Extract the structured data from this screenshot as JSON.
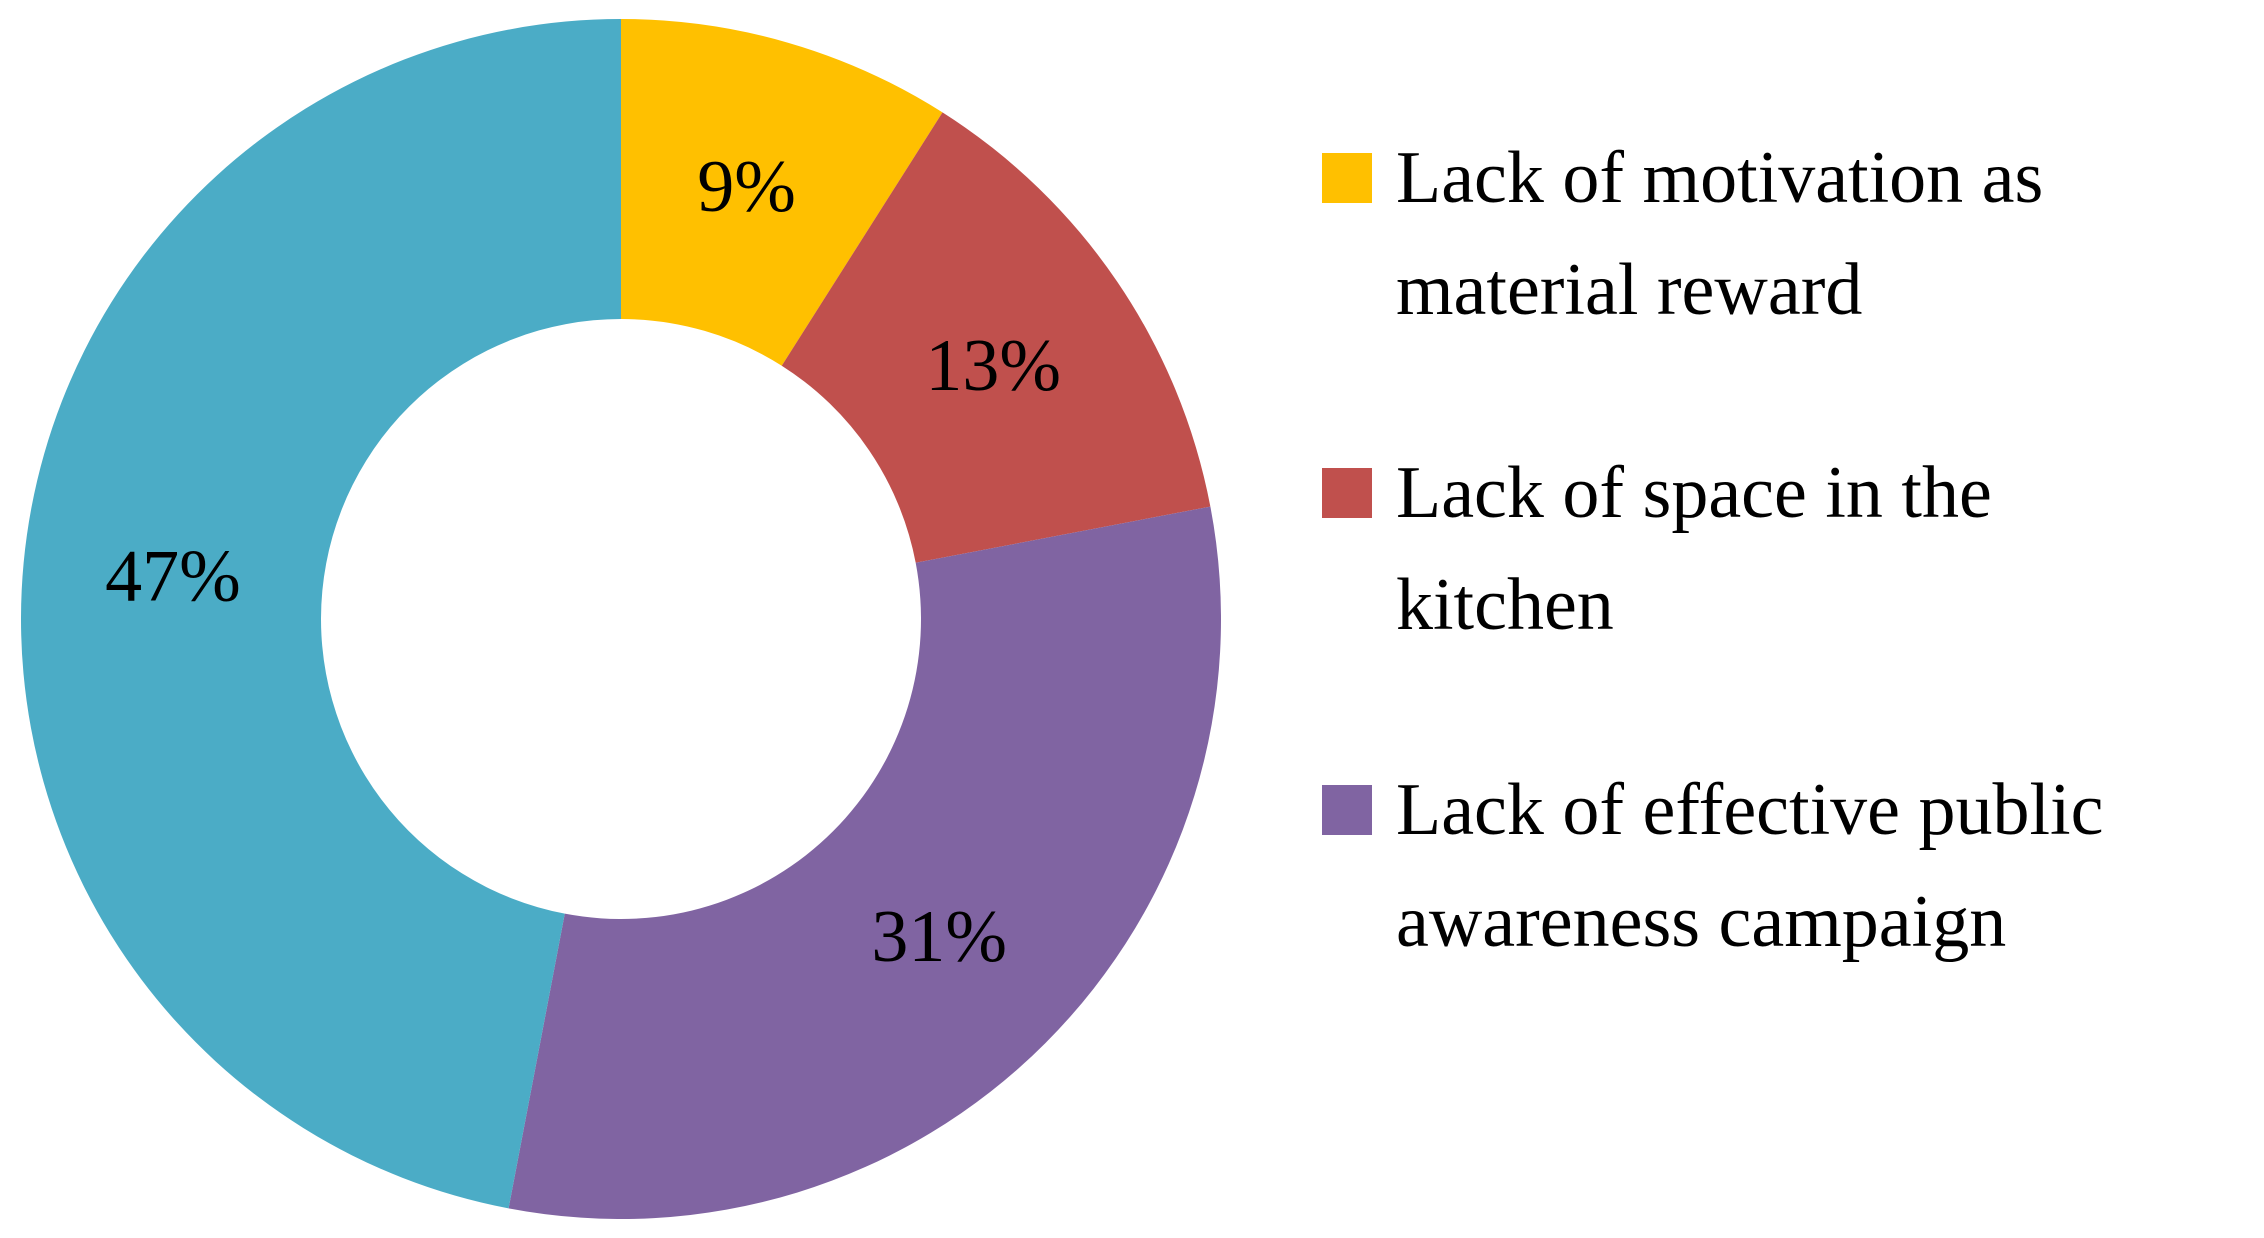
{
  "chart_data": {
    "type": "pie",
    "style": "donut",
    "categories": [
      "Lack of motivation as material reward",
      "Lack of space in the kitchen",
      "Lack of effective public awareness campaign",
      ""
    ],
    "values": [
      9,
      13,
      31,
      47
    ],
    "data_labels": [
      "9%",
      "13%",
      "31%",
      "47%"
    ],
    "colors": [
      "#FFC000",
      "#C0504D",
      "#8064A2",
      "#4BACC6"
    ],
    "legend": {
      "placement": "right",
      "entries": [
        {
          "lines": [
            "Lack of motivation as",
            "material reward"
          ],
          "color": "#FFC000"
        },
        {
          "lines": [
            "Lack of space in the",
            "kitchen"
          ],
          "color": "#C0504D"
        },
        {
          "lines": [
            "Lack of effective public",
            "awareness campaign"
          ],
          "color": "#8064A2"
        }
      ]
    },
    "title": "",
    "xlabel": "",
    "ylabel": ""
  }
}
